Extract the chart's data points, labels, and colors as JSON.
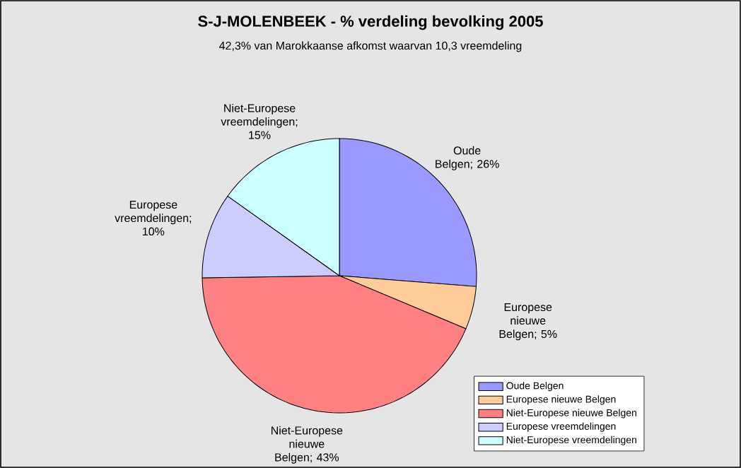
{
  "chart_data": {
    "type": "pie",
    "title": "S-J-MOLENBEEK - % verdeling bevolking 2005",
    "subtitle": "42,3% van Marokkaanse afkomst waarvan 10,3 vreemdeling",
    "categories": [
      "Oude Belgen",
      "Europese nieuwe Belgen",
      "Niet-Europese nieuwe Belgen",
      "Europese vreemdelingen",
      "Niet-Europese vreemdelingen"
    ],
    "values": [
      26,
      5,
      43,
      10,
      15
    ],
    "value_labels": [
      "Oude Belgen; 26%",
      "Europese nieuwe Belgen; 5%",
      "Niet-Europese nieuwe Belgen; 43%",
      "Europese vreemdelingen; 10%",
      "Niet-Europese vreemdelingen; 15%"
    ],
    "colors": [
      "#9999ff",
      "#ffcc99",
      "#ff8080",
      "#ccccff",
      "#ccffff"
    ],
    "legend": "bottom right"
  }
}
